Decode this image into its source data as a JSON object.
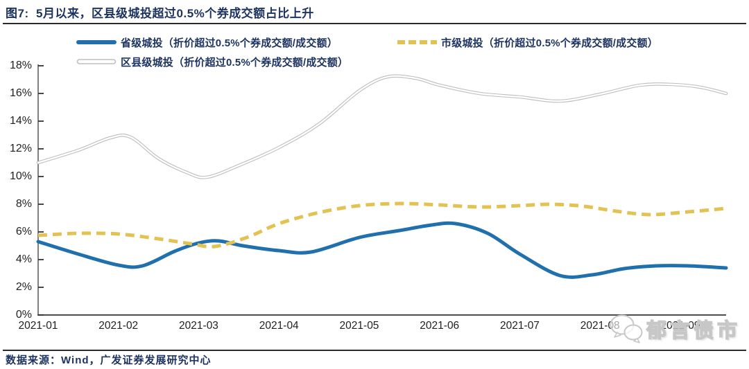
{
  "title": "图7:  5月以来，区县级城投超过0.5%个券成交额占比上升",
  "legend": [
    {
      "label": "省级城投（折价超过0.5%个券成交额/成交额）",
      "color": "#2070AE",
      "style": "solid"
    },
    {
      "label": "市级城投（折价超过0.5%个券成交额/成交额）",
      "color": "#E2C252",
      "style": "dashed"
    },
    {
      "label": "区县级城投（折价超过0.5%个券成交额/成交额）",
      "color": "#BDBDBD",
      "style": "double-outline"
    }
  ],
  "footer": {
    "source": "数据来源：Wind，广发证券发展研究中心"
  },
  "watermark": {
    "icon": "wechat-icon",
    "text": "郁言债市"
  },
  "colors": {
    "accent_navy": "#1c335f",
    "axis": "#808080",
    "axis_bottom": "#4d4d4d",
    "tick": "#333333"
  },
  "chart_data": {
    "type": "line",
    "title": "图7: 5月以来，区县级城投超过0.5%个券成交额占比上升",
    "xlabel": "",
    "ylabel": "",
    "x_tick_labels": [
      "2021-01",
      "2021-02",
      "2021-03",
      "2021-04",
      "2021-05",
      "2021-06",
      "2021-07",
      "2021-08",
      "2021-09"
    ],
    "y_ticks": [
      0,
      2,
      4,
      6,
      8,
      10,
      12,
      14,
      16,
      18
    ],
    "y_tick_suffix": "%",
    "ylim": [
      0,
      18
    ],
    "xlim_months": [
      0,
      8.57
    ],
    "grid": false,
    "legend_position": "top",
    "series": [
      {
        "name": "省级城投（折价超过0.5%个券成交额/成交额）",
        "color": "#2070AE",
        "line_style": "solid",
        "points": [
          [
            0,
            5.3
          ],
          [
            0.5,
            4.4
          ],
          [
            1,
            3.6
          ],
          [
            1.3,
            3.55
          ],
          [
            1.7,
            4.6
          ],
          [
            2,
            5.2
          ],
          [
            2.25,
            5.35
          ],
          [
            2.55,
            5.0
          ],
          [
            3,
            4.65
          ],
          [
            3.4,
            4.55
          ],
          [
            4,
            5.6
          ],
          [
            4.5,
            6.1
          ],
          [
            4.9,
            6.5
          ],
          [
            5.2,
            6.6
          ],
          [
            5.6,
            5.9
          ],
          [
            6,
            4.4
          ],
          [
            6.5,
            2.85
          ],
          [
            6.9,
            2.9
          ],
          [
            7.3,
            3.35
          ],
          [
            7.7,
            3.55
          ],
          [
            8.1,
            3.55
          ],
          [
            8.57,
            3.4
          ]
        ]
      },
      {
        "name": "市级城投（折价超过0.5%个券成交额/成交额）",
        "color": "#E2C252",
        "line_style": "dashed",
        "points": [
          [
            0,
            5.75
          ],
          [
            0.5,
            5.9
          ],
          [
            1,
            5.85
          ],
          [
            1.5,
            5.5
          ],
          [
            1.9,
            5.15
          ],
          [
            2.2,
            4.95
          ],
          [
            2.6,
            5.6
          ],
          [
            3,
            6.6
          ],
          [
            3.5,
            7.4
          ],
          [
            4,
            7.9
          ],
          [
            4.5,
            8.05
          ],
          [
            5,
            7.95
          ],
          [
            5.5,
            7.8
          ],
          [
            6,
            7.9
          ],
          [
            6.4,
            8.0
          ],
          [
            6.8,
            7.85
          ],
          [
            7.2,
            7.5
          ],
          [
            7.6,
            7.25
          ],
          [
            8,
            7.4
          ],
          [
            8.57,
            7.7
          ]
        ]
      },
      {
        "name": "区县级城投（折价超过0.5%个券成交额/成交额）",
        "color": "#BDBDBD",
        "line_style": "double-outline",
        "points": [
          [
            0,
            11.0
          ],
          [
            0.5,
            11.9
          ],
          [
            0.9,
            12.8
          ],
          [
            1.15,
            12.85
          ],
          [
            1.5,
            11.3
          ],
          [
            1.85,
            10.3
          ],
          [
            2.1,
            9.95
          ],
          [
            2.5,
            10.8
          ],
          [
            3,
            12.1
          ],
          [
            3.5,
            13.8
          ],
          [
            4,
            16.2
          ],
          [
            4.35,
            17.2
          ],
          [
            4.7,
            17.1
          ],
          [
            5,
            16.6
          ],
          [
            5.5,
            16.0
          ],
          [
            6,
            15.75
          ],
          [
            6.5,
            15.45
          ],
          [
            7,
            15.95
          ],
          [
            7.5,
            16.6
          ],
          [
            7.9,
            16.65
          ],
          [
            8.25,
            16.45
          ],
          [
            8.57,
            16.0
          ]
        ]
      }
    ]
  }
}
